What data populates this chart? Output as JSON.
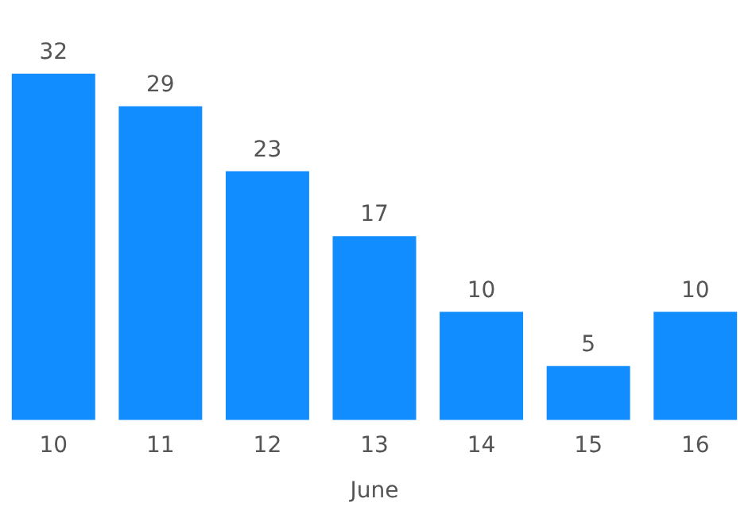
{
  "chart_data": {
    "type": "bar",
    "xlabel": "June",
    "categories": [
      "10",
      "11",
      "12",
      "13",
      "14",
      "15",
      "16"
    ],
    "values": [
      32,
      29,
      23,
      17,
      10,
      5,
      10
    ],
    "color": "#118dff",
    "data_labels": true,
    "grid": false,
    "legend": false
  }
}
